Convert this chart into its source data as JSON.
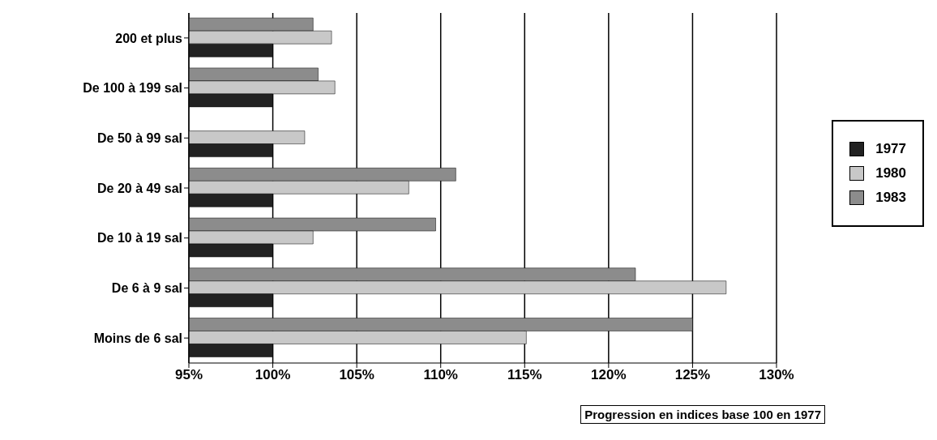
{
  "chart_data": {
    "type": "bar",
    "orientation": "horizontal",
    "categories": [
      "200 et plus",
      "De 100 à 199 sal",
      "De 50 à 99 sal",
      "De 20 à 49 sal",
      "De 10 à 19 sal",
      "De 6 à 9 sal",
      "Moins de 6 sal"
    ],
    "series": [
      {
        "name": "1977",
        "color": "#222222",
        "values": [
          100,
          100,
          100,
          100,
          100,
          100,
          100
        ]
      },
      {
        "name": "1980",
        "color": "#c8c8c8",
        "values": [
          103.5,
          103.7,
          101.9,
          108.1,
          102.4,
          127.0,
          115.1
        ]
      },
      {
        "name": "1983",
        "color": "#8c8c8c",
        "values": [
          102.4,
          102.7,
          null,
          110.9,
          109.7,
          121.6,
          125.0
        ]
      }
    ],
    "xlim": [
      95,
      130
    ],
    "xticks": [
      {
        "value": 95,
        "label": "95%"
      },
      {
        "value": 100,
        "label": "100%"
      },
      {
        "value": 105,
        "label": "105%"
      },
      {
        "value": 110,
        "label": "110%"
      },
      {
        "value": 115,
        "label": "115%"
      },
      {
        "value": 120,
        "label": "120%"
      },
      {
        "value": 125,
        "label": "125%"
      },
      {
        "value": 130,
        "label": "130%"
      }
    ],
    "grid": "x",
    "legend": "right",
    "annotations": [
      "Progression en indices base 100 en 1977"
    ]
  }
}
